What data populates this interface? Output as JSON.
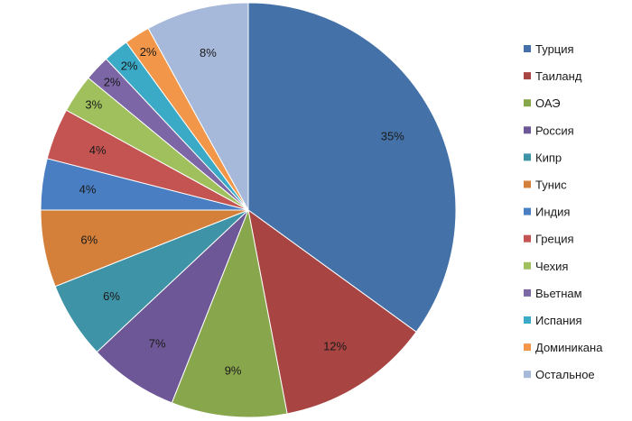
{
  "chart_data": {
    "type": "pie",
    "categories": [
      "Турция",
      "Таиланд",
      "ОАЭ",
      "Россия",
      "Кипр",
      "Тунис",
      "Индия",
      "Греция",
      "Чехия",
      "Вьетнам",
      "Испания",
      "Доминикана",
      "Остальное"
    ],
    "values": [
      35,
      12,
      9,
      7,
      6,
      6,
      4,
      4,
      3,
      2,
      2,
      2,
      8
    ],
    "labels": [
      "35%",
      "12%",
      "9%",
      "7%",
      "6%",
      "6%",
      "4%",
      "4%",
      "3%",
      "2%",
      "2%",
      "2%",
      "8%"
    ],
    "colors": [
      "#4472A8",
      "#A84442",
      "#88A64C",
      "#6E5796",
      "#3F93A6",
      "#D4803A",
      "#4A7EC2",
      "#C45452",
      "#9FC05C",
      "#7C66A6",
      "#3BAAC6",
      "#F2974A",
      "#A6B9DA"
    ],
    "legend_position": "right",
    "start_angle": "12 o'clock",
    "direction": "clockwise"
  }
}
